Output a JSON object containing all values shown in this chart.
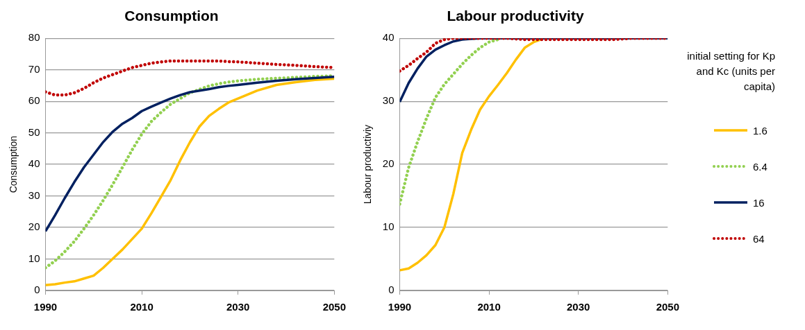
{
  "chart_data": [
    {
      "type": "line",
      "title": "Consumption",
      "ylabel": "Consumption",
      "x": [
        1990,
        1992,
        1994,
        1996,
        1998,
        2000,
        2002,
        2004,
        2006,
        2008,
        2010,
        2012,
        2014,
        2016,
        2018,
        2020,
        2022,
        2024,
        2026,
        2028,
        2030,
        2034,
        2038,
        2042,
        2046,
        2050
      ],
      "xlim": [
        1990,
        2050
      ],
      "xticks": [
        1990,
        2010,
        2030,
        2050
      ],
      "ylim": [
        0,
        80
      ],
      "yticks": [
        0,
        10,
        20,
        30,
        40,
        50,
        60,
        70,
        80
      ],
      "grid": "y",
      "marker": "none",
      "legend": false,
      "series": [
        {
          "color": "#ffc000",
          "line_style": "solid",
          "values": [
            1.7,
            2,
            2.5,
            2.9,
            3.8,
            4.7,
            7.2,
            10.1,
            13,
            16.3,
            19.6,
            24.5,
            29.7,
            35,
            41.3,
            47,
            52,
            55.4,
            57.6,
            59.6,
            60.9,
            63.4,
            65.2,
            66.1,
            66.8,
            67.2
          ]
        },
        {
          "color": "#92d050",
          "line_style": "dotted",
          "values": [
            7.2,
            9.4,
            12.3,
            15.6,
            19.6,
            23.9,
            28.6,
            33.7,
            39.1,
            44.6,
            49.6,
            53.6,
            56.5,
            59.1,
            60.9,
            62.7,
            63.8,
            64.9,
            65.6,
            66.1,
            66.5,
            67,
            67.3,
            67.6,
            67.9,
            68.1
          ]
        },
        {
          "color": "#002060",
          "line_style": "solid",
          "values": [
            18.8,
            23.9,
            29.3,
            34.4,
            39.1,
            43.1,
            47.1,
            50.4,
            52.9,
            54.7,
            56.9,
            58.3,
            59.6,
            60.9,
            62,
            62.9,
            63.4,
            63.9,
            64.5,
            64.9,
            65.2,
            65.9,
            66.5,
            67,
            67.4,
            67.8
          ]
        },
        {
          "color": "#c00000",
          "line_style": "dotted",
          "values": [
            63,
            62,
            62,
            62.7,
            64.1,
            65.9,
            67.4,
            68.5,
            69.6,
            70.7,
            71.4,
            72.1,
            72.5,
            72.8,
            72.8,
            72.8,
            72.8,
            72.8,
            72.8,
            72.6,
            72.5,
            72.1,
            71.7,
            71.4,
            71,
            70.7
          ]
        }
      ]
    },
    {
      "type": "line",
      "title": "Labour productivity",
      "ylabel": "Labour productiviy",
      "legend_title": "initial setting for Kp and Kc (units per capita)",
      "x": [
        1990,
        1992,
        1994,
        1996,
        1998,
        2000,
        2002,
        2004,
        2006,
        2008,
        2010,
        2012,
        2014,
        2016,
        2018,
        2020,
        2022,
        2024,
        2026,
        2028,
        2030,
        2034,
        2038,
        2042,
        2046,
        2050
      ],
      "xlim": [
        1990,
        2050
      ],
      "xticks": [
        1990,
        2010,
        2030,
        2050
      ],
      "ylim": [
        0,
        40
      ],
      "yticks": [
        0,
        10,
        20,
        30,
        40
      ],
      "grid": "y",
      "marker": "none",
      "legend": "right",
      "series": [
        {
          "name": "1.6",
          "color": "#ffc000",
          "line_style": "solid",
          "values": [
            3.2,
            3.5,
            4.4,
            5.6,
            7.2,
            10,
            15.3,
            21.8,
            25.5,
            28.7,
            30.8,
            32.6,
            34.5,
            36.6,
            38.5,
            39.4,
            39.9,
            null,
            null,
            null,
            null,
            null,
            null,
            null,
            null,
            null
          ]
        },
        {
          "name": "6.4",
          "color": "#92d050",
          "line_style": "dotted",
          "values": [
            13.7,
            19.5,
            23.6,
            27.3,
            30.6,
            32.7,
            34.3,
            35.9,
            37.3,
            38.5,
            39.4,
            39.8,
            null,
            null,
            null,
            null,
            null,
            null,
            null,
            null,
            null,
            null,
            null,
            null,
            null,
            null
          ]
        },
        {
          "name": "16",
          "color": "#002060",
          "line_style": "solid",
          "values": [
            29.9,
            32.9,
            35.2,
            37.1,
            38.2,
            38.9,
            39.5,
            39.8,
            39.9,
            40,
            40,
            40,
            40,
            40,
            40,
            40,
            40,
            40,
            40,
            40,
            40,
            40,
            40,
            40,
            40,
            40
          ]
        },
        {
          "name": "64",
          "color": "#c00000",
          "line_style": "dotted",
          "values": [
            34.8,
            35.7,
            36.8,
            37.8,
            39.2,
            39.8,
            40,
            40,
            40,
            40,
            40,
            40,
            40,
            39.9,
            39.8,
            39.8,
            39.8,
            39.8,
            39.8,
            39.8,
            39.8,
            39.8,
            39.8,
            40,
            40,
            40
          ]
        }
      ]
    }
  ]
}
